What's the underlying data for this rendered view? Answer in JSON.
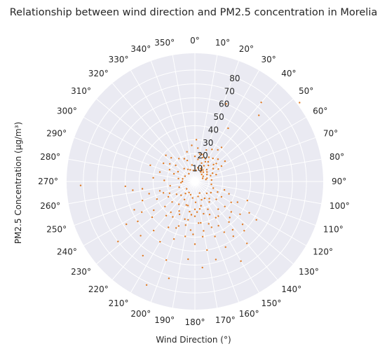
{
  "chart_data": {
    "type": "scatter",
    "projection": "polar",
    "title": "Relationship between wind direction and PM2.5 concentration in Morelia",
    "xlabel": "Wind Direction (°)",
    "ylabel": "PM2.5 Concentration (µg/m³)",
    "theta_zero": "N",
    "theta_direction": "clockwise",
    "theta_ticks_deg": [
      0,
      10,
      20,
      30,
      40,
      50,
      60,
      70,
      80,
      90,
      100,
      110,
      120,
      130,
      140,
      150,
      160,
      170,
      180,
      190,
      200,
      210,
      220,
      230,
      240,
      250,
      260,
      270,
      280,
      290,
      300,
      310,
      320,
      330,
      340,
      350
    ],
    "theta_tick_labels": [
      "0°",
      "10°",
      "20°",
      "30°",
      "40°",
      "50°",
      "60°",
      "70°",
      "80°",
      "90°",
      "100°",
      "110°",
      "120°",
      "130°",
      "140°",
      "150°",
      "160°",
      "170°",
      "180°",
      "190°",
      "200°",
      "210°",
      "220°",
      "230°",
      "240°",
      "250°",
      "260°",
      "270°",
      "280°",
      "290°",
      "300°",
      "310°",
      "320°",
      "330°",
      "340°",
      "350°"
    ],
    "r_ticks": [
      10,
      20,
      30,
      40,
      50,
      60,
      70,
      80
    ],
    "r_tick_labels": [
      "10",
      "20",
      "30",
      "40",
      "50",
      "60",
      "70",
      "80"
    ],
    "r_label_angle_deg": 22.5,
    "rlim": [
      0,
      92
    ],
    "grid": true,
    "marker_color": "#e07b24",
    "background_color": "#eaeaf2",
    "grid_color": "#ffffff",
    "series": [
      {
        "points": [
          [
            40,
            74
          ],
          [
            53,
            94
          ],
          [
            44,
            66
          ],
          [
            22,
            60
          ],
          [
            32,
            45
          ],
          [
            36,
            28
          ],
          [
            30,
            20
          ],
          [
            50,
            20
          ],
          [
            60,
            10
          ],
          [
            40,
            15
          ],
          [
            20,
            24
          ],
          [
            25,
            18
          ],
          [
            30,
            13
          ],
          [
            45,
            12
          ],
          [
            55,
            16
          ],
          [
            70,
            12
          ],
          [
            80,
            8
          ],
          [
            35,
            10
          ],
          [
            60,
            22
          ],
          [
            15,
            20
          ],
          [
            28,
            16
          ],
          [
            38,
            21
          ],
          [
            48,
            18
          ],
          [
            65,
            14
          ],
          [
            75,
            9
          ],
          [
            20,
            14
          ],
          [
            42,
            9
          ],
          [
            52,
            11
          ],
          [
            32,
            8
          ],
          [
            58,
            7
          ],
          [
            68,
            6
          ],
          [
            24,
            10
          ],
          [
            34,
            17
          ],
          [
            46,
            23
          ],
          [
            56,
            26
          ],
          [
            18,
            18
          ],
          [
            28,
            26
          ],
          [
            38,
            31
          ],
          [
            62,
            19
          ],
          [
            72,
            16
          ],
          [
            85,
            12
          ],
          [
            26,
            11
          ],
          [
            44,
            7
          ],
          [
            30,
            9
          ],
          [
            160,
            14
          ],
          [
            170,
            20
          ],
          [
            180,
            25
          ],
          [
            190,
            22
          ],
          [
            200,
            18
          ],
          [
            210,
            15
          ],
          [
            175,
            30
          ],
          [
            185,
            35
          ],
          [
            195,
            28
          ],
          [
            165,
            24
          ],
          [
            155,
            22
          ],
          [
            145,
            18
          ],
          [
            150,
            30
          ],
          [
            140,
            26
          ],
          [
            130,
            20
          ],
          [
            205,
            26
          ],
          [
            215,
            20
          ],
          [
            220,
            32
          ],
          [
            230,
            28
          ],
          [
            240,
            22
          ],
          [
            225,
            14
          ],
          [
            235,
            16
          ],
          [
            250,
            12
          ],
          [
            245,
            20
          ],
          [
            190,
            40
          ],
          [
            200,
            44
          ],
          [
            210,
            50
          ],
          [
            180,
            45
          ],
          [
            170,
            50
          ],
          [
            160,
            35
          ],
          [
            150,
            42
          ],
          [
            140,
            38
          ],
          [
            130,
            34
          ],
          [
            120,
            30
          ],
          [
            110,
            26
          ],
          [
            115,
            18
          ],
          [
            125,
            14
          ],
          [
            135,
            12
          ],
          [
            255,
            26
          ],
          [
            260,
            18
          ],
          [
            255,
            34
          ],
          [
            262,
            45
          ],
          [
            265,
            10
          ],
          [
            270,
            9
          ],
          [
            250,
            40
          ],
          [
            240,
            44
          ],
          [
            230,
            40
          ],
          [
            220,
            46
          ],
          [
            200,
            60
          ],
          [
            185,
            56
          ],
          [
            175,
            62
          ],
          [
            165,
            58
          ],
          [
            155,
            52
          ],
          [
            145,
            48
          ],
          [
            140,
            58
          ],
          [
            150,
            66
          ],
          [
            135,
            50
          ],
          [
            120,
            45
          ],
          [
            110,
            40
          ],
          [
            205,
            82
          ],
          [
            195,
            72
          ],
          [
            215,
            65
          ],
          [
            225,
            55
          ],
          [
            235,
            50
          ],
          [
            245,
            48
          ],
          [
            172,
            40
          ],
          [
            178,
            15
          ],
          [
            188,
            12
          ],
          [
            198,
            10
          ],
          [
            168,
            11
          ],
          [
            158,
            9
          ],
          [
            208,
            9
          ],
          [
            218,
            11
          ],
          [
            228,
            8
          ],
          [
            180,
            20
          ],
          [
            190,
            28
          ],
          [
            200,
            34
          ],
          [
            210,
            38
          ],
          [
            170,
            36
          ],
          [
            160,
            42
          ],
          [
            150,
            14
          ],
          [
            140,
            16
          ],
          [
            130,
            28
          ],
          [
            120,
            22
          ],
          [
            110,
            14
          ],
          [
            100,
            12
          ],
          [
            235,
            36
          ],
          [
            245,
            30
          ],
          [
            250,
            24
          ],
          [
            228,
            22
          ],
          [
            218,
            28
          ],
          [
            208,
            24
          ],
          [
            196,
            18
          ],
          [
            186,
            24
          ],
          [
            176,
            22
          ],
          [
            166,
            18
          ],
          [
            156,
            26
          ],
          [
            146,
            30
          ],
          [
            136,
            36
          ],
          [
            126,
            40
          ],
          [
            116,
            34
          ],
          [
            106,
            22
          ],
          [
            238,
            58
          ],
          [
            232,
            70
          ],
          [
            212,
            30
          ],
          [
            202,
            36
          ],
          [
            192,
            32
          ],
          [
            182,
            38
          ],
          [
            172,
            30
          ],
          [
            162,
            32
          ],
          [
            152,
            36
          ],
          [
            142,
            44
          ],
          [
            132,
            46
          ],
          [
            122,
            52
          ],
          [
            290,
            16
          ],
          [
            300,
            14
          ],
          [
            295,
            20
          ],
          [
            305,
            22
          ],
          [
            310,
            18
          ],
          [
            320,
            12
          ],
          [
            330,
            10
          ],
          [
            340,
            16
          ],
          [
            350,
            12
          ],
          [
            0,
            18
          ],
          [
            5,
            24
          ],
          [
            10,
            20
          ],
          [
            280,
            12
          ],
          [
            285,
            26
          ],
          [
            312,
            28
          ],
          [
            268,
            82
          ],
          [
            266,
            50
          ],
          [
            275,
            30
          ],
          [
            290,
            34
          ],
          [
            300,
            26
          ],
          [
            315,
            24
          ],
          [
            325,
            20
          ],
          [
            335,
            18
          ],
          [
            345,
            22
          ],
          [
            355,
            26
          ],
          [
            2,
            30
          ],
          [
            8,
            16
          ],
          [
            12,
            10
          ],
          [
            282,
            9
          ],
          [
            298,
            8
          ],
          [
            322,
            7
          ],
          [
            338,
            9
          ],
          [
            352,
            8
          ],
          [
            6,
            8
          ],
          [
            262,
            38
          ],
          [
            272,
            22
          ]
        ]
      }
    ]
  }
}
